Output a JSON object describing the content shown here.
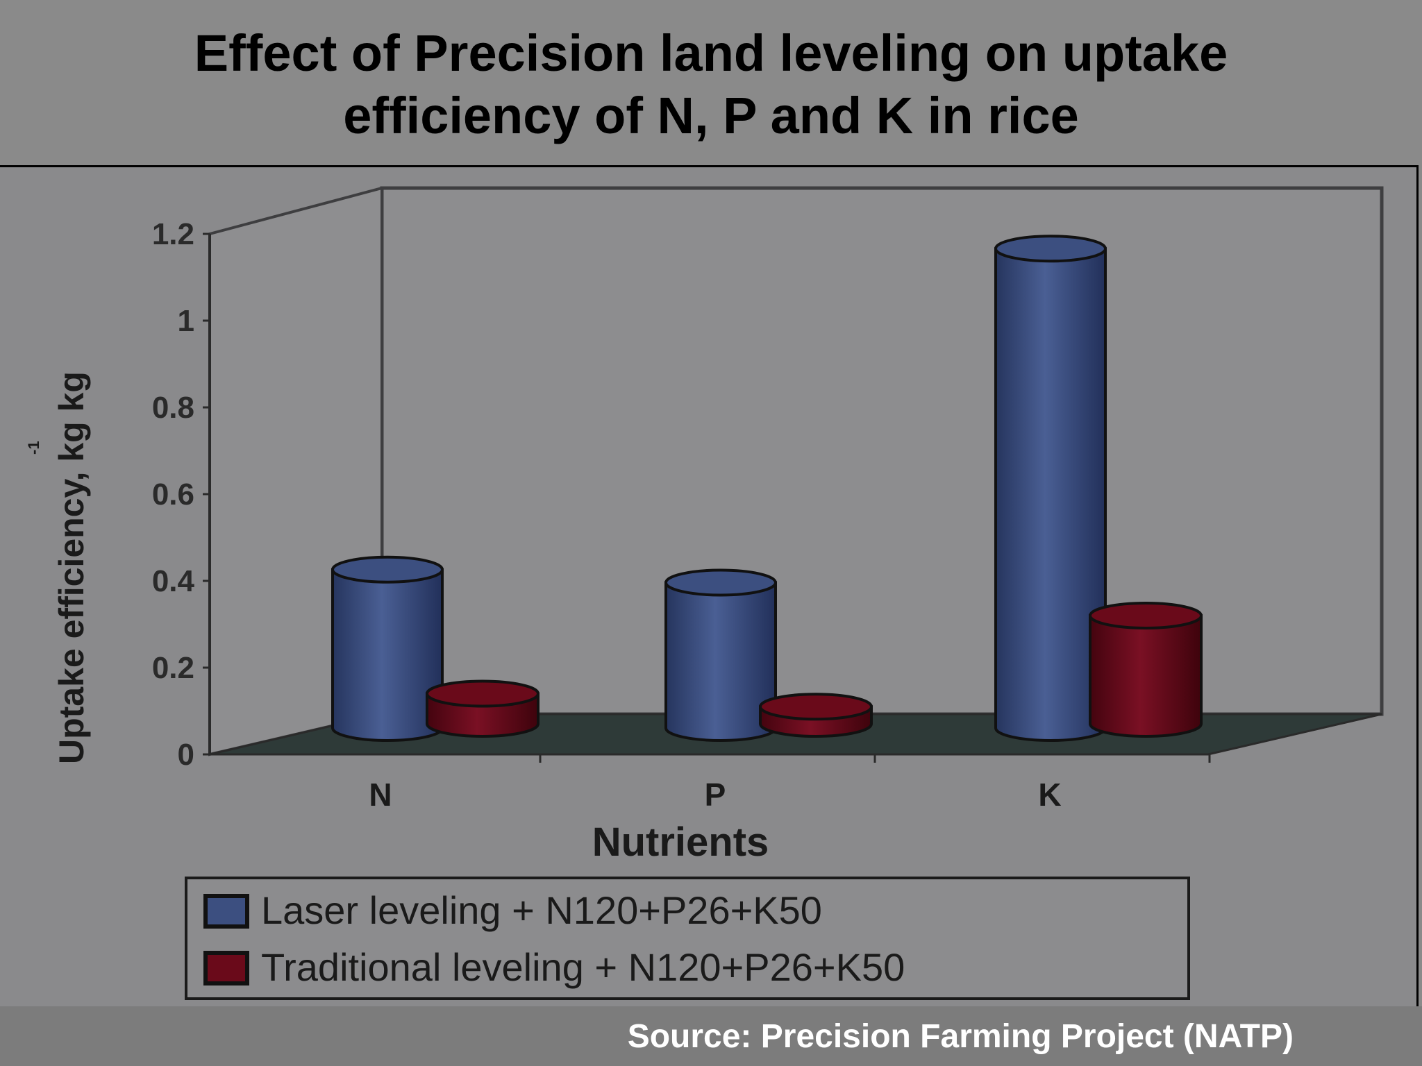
{
  "title_lines": [
    "Effect of Precision land leveling on uptake",
    "efficiency of N, P and K in rice"
  ],
  "source": "Source: Precision Farming Project (NATP)",
  "chart_data": {
    "type": "bar",
    "style": "3d-cylinder",
    "categories": [
      "N",
      "P",
      "K"
    ],
    "series": [
      {
        "name": "Laser leveling + N120+P26+K50",
        "values": [
          0.41,
          0.38,
          1.15
        ],
        "color": "#3c4f80"
      },
      {
        "name": "Traditional leveling + N120+P26+K50",
        "values": [
          0.18,
          0.15,
          0.36
        ],
        "color": "#6a0a1a"
      }
    ],
    "title": "",
    "xlabel": "Nutrients",
    "ylabel": "Uptake efficiency, kg kg",
    "ylabel_superscript": "-1",
    "ylim": [
      0,
      1.2
    ],
    "yticks": [
      "0",
      "0.2",
      "0.4",
      "0.6",
      "0.8",
      "1",
      "1.2"
    ],
    "grid": false,
    "legend_position": "bottom"
  }
}
